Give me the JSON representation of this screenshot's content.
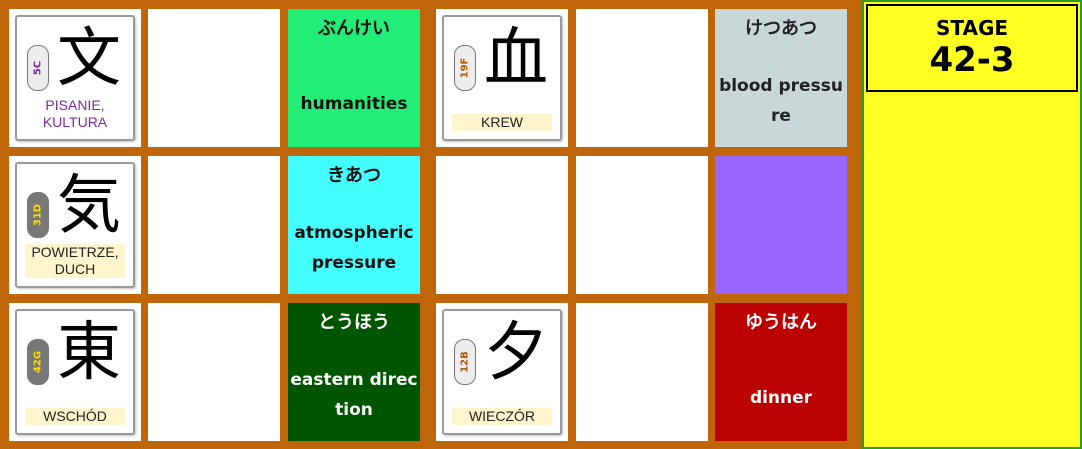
{
  "board": {
    "rows": [
      [
        {
          "type": "kanji",
          "kanji": "文",
          "code": "5C",
          "code_color": "#7a2aa0",
          "badge_dark": false,
          "meaning": "PISANIE,\nKULTURA",
          "meaning_color": "#7a2aa0",
          "meaning_bg": false
        },
        {
          "type": "empty"
        },
        {
          "type": "word",
          "kana": "ぶんけい",
          "english": "humanities",
          "bg": "#22ee77",
          "color": "#111111"
        },
        {
          "type": "kanji",
          "kanji": "血",
          "code": "19F",
          "code_color": "#b05a00",
          "badge_dark": false,
          "meaning": "KREW",
          "meaning_color": "#222222",
          "meaning_bg": true
        },
        {
          "type": "empty"
        },
        {
          "type": "word",
          "kana": "けつあつ",
          "english": "blood pressure",
          "bg": "#c8d8d8",
          "color": "#222222"
        }
      ],
      [
        {
          "type": "kanji",
          "kanji": "気",
          "code": "31D",
          "code_color": "#ffdd00",
          "badge_dark": true,
          "meaning": "POWIETRZE,\nDUCH",
          "meaning_color": "#222222",
          "meaning_bg": true
        },
        {
          "type": "empty"
        },
        {
          "type": "word",
          "kana": "きあつ",
          "english": "atmospheric pressure",
          "bg": "#44ffff",
          "color": "#111111"
        },
        {
          "type": "empty"
        },
        {
          "type": "empty"
        },
        {
          "type": "word",
          "kana": "",
          "english": "",
          "bg": "#9966ff",
          "color": "#111111"
        }
      ],
      [
        {
          "type": "kanji",
          "kanji": "東",
          "code": "42G",
          "code_color": "#ffdd00",
          "badge_dark": true,
          "meaning": "WSCHÓD",
          "meaning_color": "#222222",
          "meaning_bg": true
        },
        {
          "type": "empty"
        },
        {
          "type": "word",
          "kana": "とうほう",
          "english": "eastern direction",
          "bg": "#005500",
          "color": "#ffffff"
        },
        {
          "type": "kanji",
          "kanji": "夕",
          "code": "12B",
          "code_color": "#b05a00",
          "badge_dark": false,
          "meaning": "WIECZÓR",
          "meaning_color": "#222222",
          "meaning_bg": true
        },
        {
          "type": "empty"
        },
        {
          "type": "word",
          "kana": "ゆうはん",
          "english": "dinner",
          "bg": "#bb0000",
          "color": "#ffffff"
        }
      ]
    ]
  },
  "side": {
    "stage_label": "STAGE",
    "stage_number": "42-3"
  }
}
